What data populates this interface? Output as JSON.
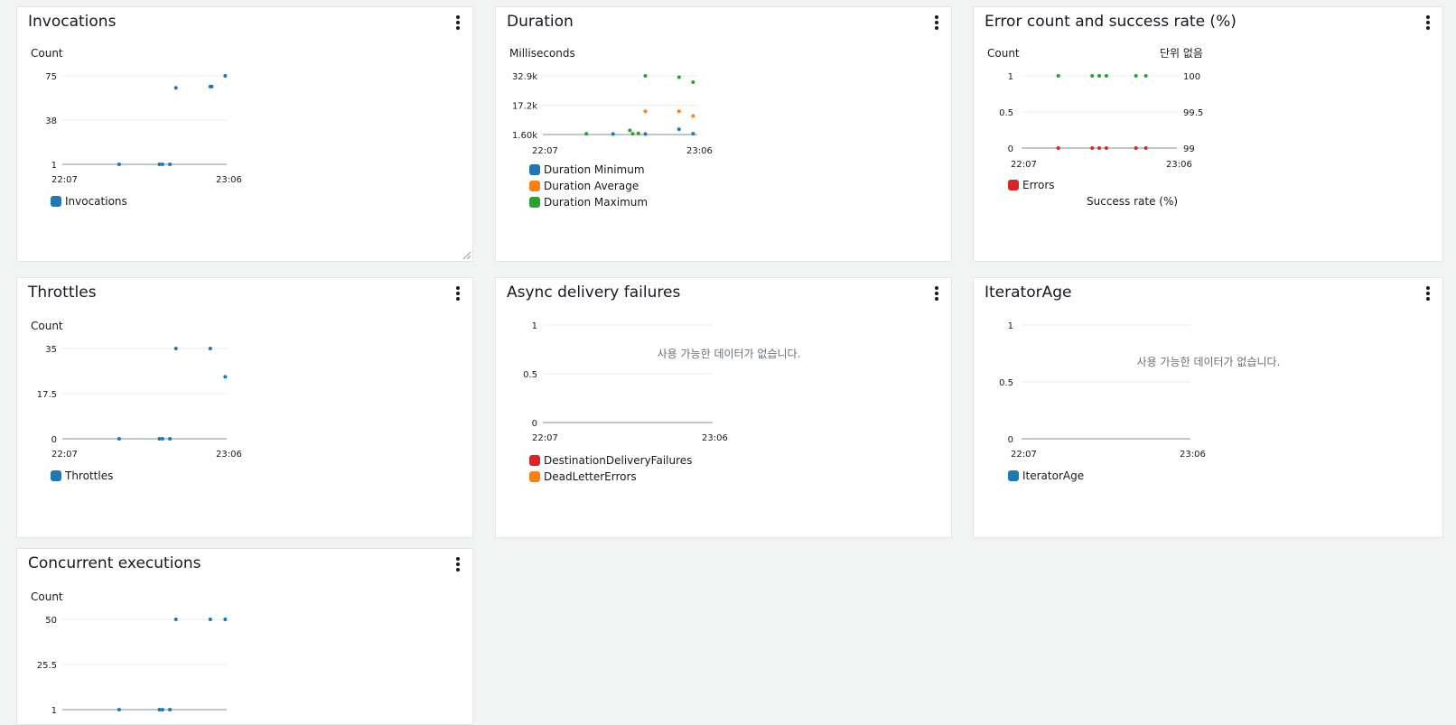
{
  "widgets": {
    "invocations": {
      "title": "Invocations",
      "unit": "Count",
      "legend": [
        "Invocations"
      ]
    },
    "duration": {
      "title": "Duration",
      "unit": "Milliseconds",
      "legend": [
        "Duration Minimum",
        "Duration Average",
        "Duration Maximum"
      ]
    },
    "errors": {
      "title": "Error count and success rate (%)",
      "unit_left": "Count",
      "unit_right": "단위 없음",
      "legend": [
        "Errors",
        "Success rate (%)"
      ]
    },
    "throttles": {
      "title": "Throttles",
      "unit": "Count",
      "legend": [
        "Throttles"
      ]
    },
    "async": {
      "title": "Async delivery failures",
      "no_data": "사용 가능한 데이터가 없습니다.",
      "legend": [
        "DestinationDeliveryFailures",
        "DeadLetterErrors"
      ]
    },
    "iterator": {
      "title": "IteratorAge",
      "no_data": "사용 가능한 데이터가 없습니다.",
      "legend": [
        "IteratorAge"
      ]
    },
    "concurrent": {
      "title": "Concurrent executions",
      "unit": "Count",
      "legend": []
    }
  },
  "colors": {
    "blue": "#1f77b4",
    "orange": "#ff7f0e",
    "green": "#2ca02c",
    "red": "#d62728",
    "grid": "#e9ebed",
    "axis": "#aab7b8"
  },
  "chart_data": [
    {
      "id": "invocations",
      "type": "scatter",
      "x_tick_labels": [
        "22:07",
        "23:06"
      ],
      "yticks": [
        1,
        38,
        75
      ],
      "ylim": [
        1,
        75
      ],
      "series": [
        {
          "name": "Invocations",
          "color": "#1f77b4",
          "points": [
            [
              0.38,
              1
            ],
            [
              0.65,
              1
            ],
            [
              0.67,
              1
            ],
            [
              0.72,
              1
            ],
            [
              0.76,
              65
            ],
            [
              0.99,
              66
            ],
            [
              1.0,
              66
            ],
            [
              1.09,
              75
            ]
          ]
        }
      ]
    },
    {
      "id": "duration",
      "type": "scatter",
      "x_tick_labels": [
        "22:07",
        "23:06"
      ],
      "y_tick_labels": [
        "1.60k",
        "17.2k",
        "32.9k"
      ],
      "yticks": [
        1600,
        17200,
        32900
      ],
      "ylim": [
        1600,
        32900
      ],
      "series": [
        {
          "name": "Duration Minimum",
          "color": "#1f77b4",
          "points": [
            [
              0.5,
              1900
            ],
            [
              0.73,
              1900
            ],
            [
              0.97,
              4400
            ],
            [
              1.07,
              2000
            ]
          ]
        },
        {
          "name": "Duration Average",
          "color": "#ff7f0e",
          "points": [
            [
              0.73,
              14000
            ],
            [
              0.97,
              14000
            ],
            [
              1.07,
              11500
            ]
          ]
        },
        {
          "name": "Duration Maximum",
          "color": "#2ca02c",
          "points": [
            [
              0.31,
              2000
            ],
            [
              0.62,
              3800
            ],
            [
              0.64,
              2000
            ],
            [
              0.68,
              2200
            ],
            [
              0.73,
              32900
            ],
            [
              0.97,
              32200
            ],
            [
              1.07,
              29500
            ]
          ]
        }
      ]
    },
    {
      "id": "errors",
      "type": "scatter",
      "x_tick_labels": [
        "22:07",
        "23:06"
      ],
      "yticks_left": [
        0,
        0.5,
        1
      ],
      "ylim_left": [
        0,
        1
      ],
      "yticks_right": [
        99,
        99.5,
        100
      ],
      "ylim_right": [
        99,
        100
      ],
      "series": [
        {
          "name": "Errors",
          "color": "#d62728",
          "axis": "left",
          "points": [
            [
              0.26,
              0
            ],
            [
              0.5,
              0
            ],
            [
              0.55,
              0
            ],
            [
              0.6,
              0
            ],
            [
              0.81,
              0
            ],
            [
              0.88,
              0
            ]
          ]
        },
        {
          "name": "Success rate (%)",
          "color": "#2ca02c",
          "axis": "right",
          "points": [
            [
              0.26,
              100
            ],
            [
              0.5,
              100
            ],
            [
              0.55,
              100
            ],
            [
              0.6,
              100
            ],
            [
              0.81,
              100
            ],
            [
              0.88,
              100
            ]
          ]
        }
      ]
    },
    {
      "id": "throttles",
      "type": "scatter",
      "x_tick_labels": [
        "22:07",
        "23:06"
      ],
      "yticks": [
        0,
        17.5,
        35
      ],
      "ylim": [
        0,
        35
      ],
      "series": [
        {
          "name": "Throttles",
          "color": "#1f77b4",
          "points": [
            [
              0.38,
              0
            ],
            [
              0.65,
              0
            ],
            [
              0.67,
              0
            ],
            [
              0.72,
              0
            ],
            [
              0.76,
              35
            ],
            [
              0.99,
              35
            ],
            [
              1.09,
              24
            ]
          ]
        }
      ]
    },
    {
      "id": "async",
      "type": "scatter",
      "x_tick_labels": [
        "22:07",
        "23:06"
      ],
      "yticks": [
        0,
        0.5,
        1
      ],
      "ylim": [
        0,
        1
      ],
      "series": []
    },
    {
      "id": "iterator",
      "type": "scatter",
      "x_tick_labels": [
        "22:07",
        "23:06"
      ],
      "yticks": [
        0,
        0.5,
        1
      ],
      "ylim": [
        0,
        1
      ],
      "series": []
    },
    {
      "id": "concurrent",
      "type": "scatter",
      "x_tick_labels": [],
      "yticks": [
        1,
        25.5,
        50
      ],
      "ylim": [
        1,
        50
      ],
      "series": [
        {
          "name": "Concurrent executions",
          "color": "#1f77b4",
          "points": [
            [
              0.38,
              1
            ],
            [
              0.65,
              1
            ],
            [
              0.67,
              1
            ],
            [
              0.72,
              1
            ],
            [
              0.76,
              50
            ],
            [
              0.99,
              50
            ],
            [
              1.09,
              50
            ]
          ]
        }
      ]
    }
  ]
}
